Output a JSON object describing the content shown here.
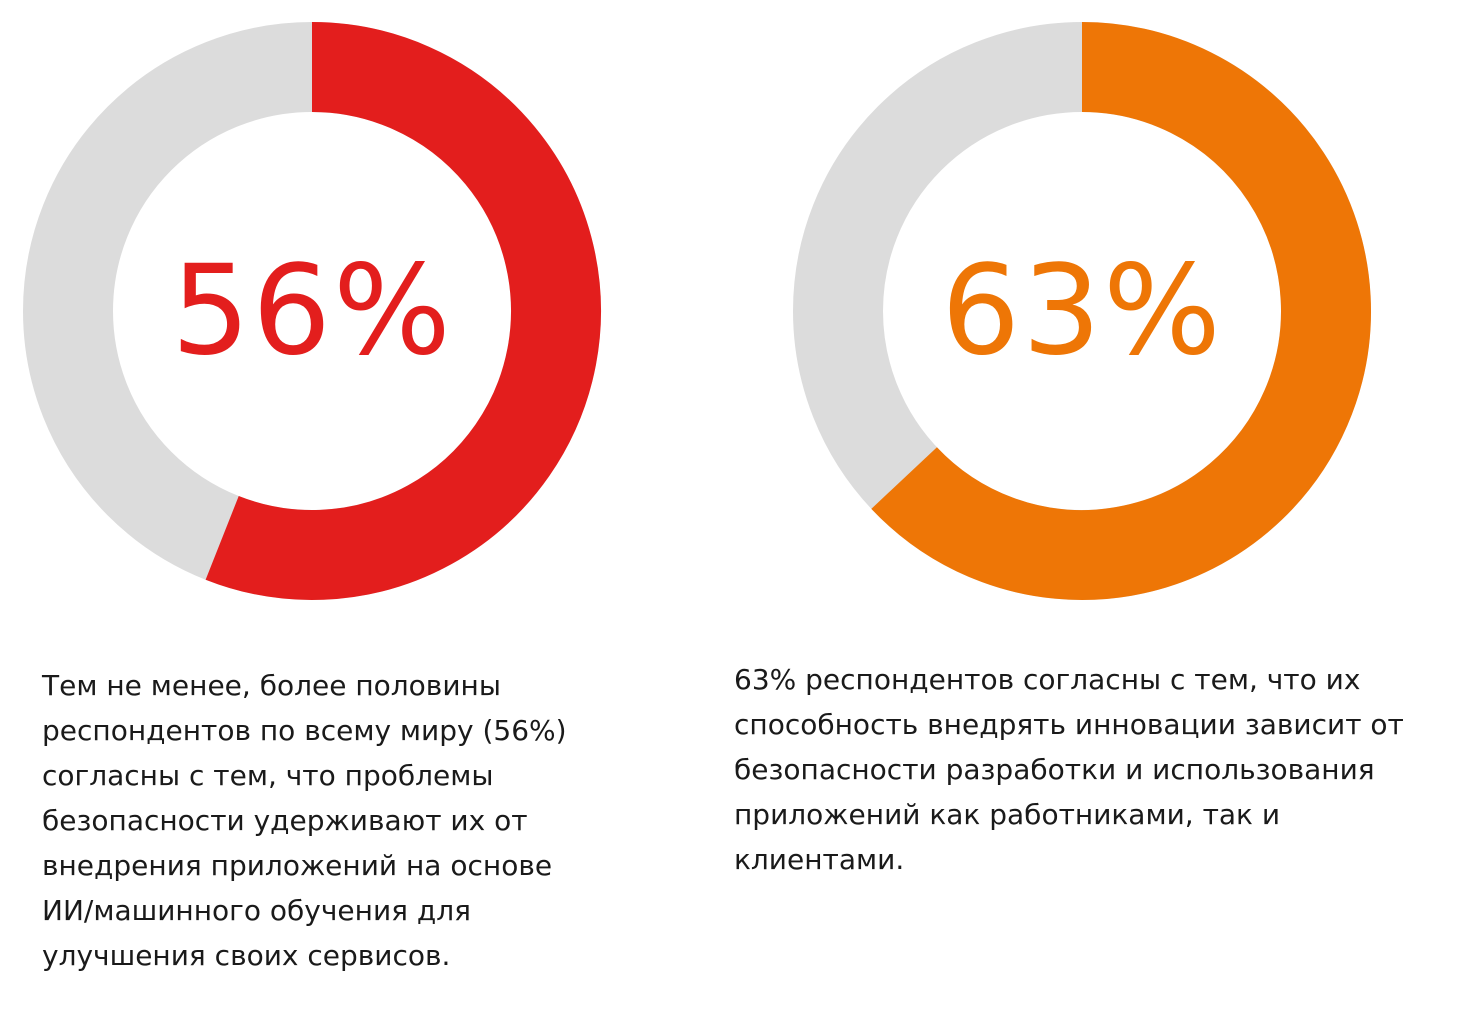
{
  "chart_data": [
    {
      "type": "pie",
      "variant": "donut",
      "value_percent": 56,
      "label": "56%",
      "colors": {
        "filled": "#e31e1d",
        "remaining": "#dcdcdc"
      },
      "caption_lines": [
        "Тем не менее, более половины",
        "респондентов по всему миру (56%)",
        "согласны с тем, что проблемы",
        "безопасности удерживают их от",
        "внедрения приложений на основе",
        "ИИ/машинного обучения для",
        "улучшения своих сервисов."
      ]
    },
    {
      "type": "pie",
      "variant": "donut",
      "value_percent": 63,
      "label": "63%",
      "colors": {
        "filled": "#ee7606",
        "remaining": "#dcdcdc"
      },
      "caption_lines": [
        "63% респондентов согласны с тем, что их",
        "способность внедрять инновации зависит от",
        "безопасности разработки и использования",
        "приложений как работниками, так и",
        "клиентами."
      ]
    }
  ]
}
